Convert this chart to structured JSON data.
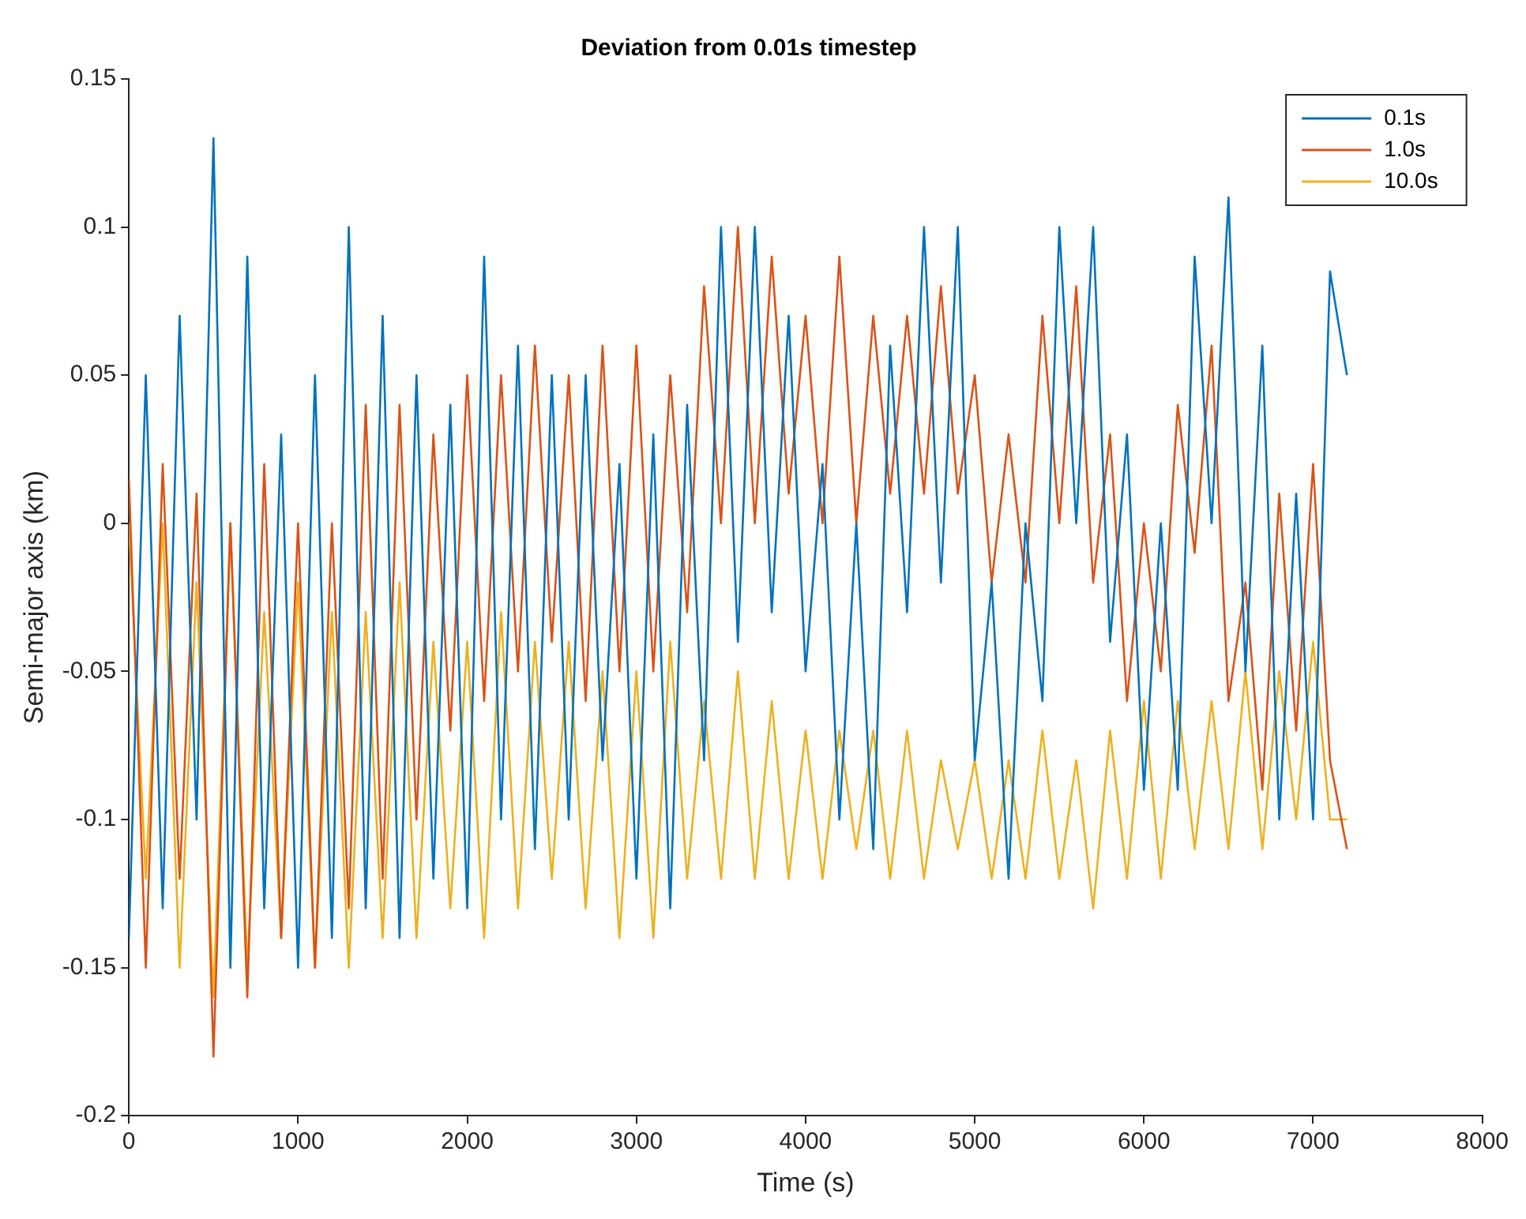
{
  "chart_data": {
    "type": "line",
    "title": "Deviation from 0.01s timestep",
    "xlabel": "Time (s)",
    "ylabel": "Semi-major axis (km)",
    "x": [
      0,
      100,
      200,
      300,
      400,
      500,
      600,
      700,
      800,
      900,
      1000,
      1100,
      1200,
      1300,
      1400,
      1500,
      1600,
      1700,
      1800,
      1900,
      2000,
      2100,
      2200,
      2300,
      2400,
      2500,
      2600,
      2700,
      2800,
      2900,
      3000,
      3100,
      3200,
      3300,
      3400,
      3500,
      3600,
      3700,
      3800,
      3900,
      4000,
      4100,
      4200,
      4300,
      4400,
      4500,
      4600,
      4700,
      4800,
      4900,
      5000,
      5100,
      5200,
      5300,
      5400,
      5500,
      5600,
      5700,
      5800,
      5900,
      6000,
      6100,
      6200,
      6300,
      6400,
      6500,
      6600,
      6700,
      6800,
      6900,
      7000,
      7100,
      7200
    ],
    "series": [
      {
        "name": "0.1s",
        "color": "#0072bd",
        "values": [
          -0.14,
          0.05,
          -0.13,
          0.07,
          -0.1,
          0.13,
          -0.15,
          0.09,
          -0.13,
          0.03,
          -0.15,
          0.05,
          -0.14,
          0.1,
          -0.13,
          0.07,
          -0.14,
          0.05,
          -0.12,
          0.04,
          -0.13,
          0.09,
          -0.1,
          0.06,
          -0.11,
          0.05,
          -0.1,
          0.05,
          -0.08,
          0.02,
          -0.12,
          0.03,
          -0.13,
          0.04,
          -0.08,
          0.1,
          -0.04,
          0.1,
          -0.03,
          0.07,
          -0.05,
          0.02,
          -0.1,
          0.0,
          -0.11,
          0.06,
          -0.03,
          0.1,
          -0.02,
          0.1,
          -0.08,
          -0.02,
          -0.12,
          0.0,
          -0.06,
          0.1,
          0.0,
          0.1,
          -0.04,
          0.03,
          -0.09,
          0.0,
          -0.09,
          0.09,
          0.0,
          0.11,
          -0.05,
          0.06,
          -0.1,
          0.01,
          -0.1,
          0.085,
          0.05
        ]
      },
      {
        "name": "1.0s",
        "color": "#d95319",
        "values": [
          0.015,
          -0.15,
          0.02,
          -0.12,
          0.01,
          -0.18,
          0.0,
          -0.16,
          0.02,
          -0.14,
          0.0,
          -0.15,
          0.0,
          -0.13,
          0.04,
          -0.12,
          0.04,
          -0.1,
          0.03,
          -0.07,
          0.05,
          -0.06,
          0.05,
          -0.05,
          0.06,
          -0.04,
          0.05,
          -0.06,
          0.06,
          -0.05,
          0.06,
          -0.05,
          0.05,
          -0.03,
          0.08,
          0.0,
          0.1,
          0.0,
          0.09,
          0.01,
          0.07,
          0.0,
          0.09,
          0.0,
          0.07,
          0.01,
          0.07,
          0.01,
          0.08,
          0.01,
          0.05,
          -0.02,
          0.03,
          -0.02,
          0.07,
          0.0,
          0.08,
          -0.02,
          0.03,
          -0.06,
          0.0,
          -0.05,
          0.04,
          -0.01,
          0.06,
          -0.06,
          -0.02,
          -0.09,
          0.01,
          -0.07,
          0.02,
          -0.08,
          -0.11
        ]
      },
      {
        "name": "10.0s",
        "color": "#edb120",
        "values": [
          0.0,
          -0.12,
          0.0,
          -0.15,
          -0.02,
          -0.16,
          0.0,
          -0.15,
          -0.03,
          -0.14,
          -0.02,
          -0.15,
          -0.03,
          -0.15,
          -0.03,
          -0.14,
          -0.02,
          -0.14,
          -0.04,
          -0.13,
          -0.04,
          -0.14,
          -0.03,
          -0.13,
          -0.04,
          -0.12,
          -0.04,
          -0.13,
          -0.05,
          -0.14,
          -0.05,
          -0.14,
          -0.04,
          -0.12,
          -0.06,
          -0.12,
          -0.05,
          -0.12,
          -0.06,
          -0.12,
          -0.07,
          -0.12,
          -0.07,
          -0.11,
          -0.07,
          -0.12,
          -0.07,
          -0.12,
          -0.08,
          -0.11,
          -0.08,
          -0.12,
          -0.08,
          -0.12,
          -0.07,
          -0.12,
          -0.08,
          -0.13,
          -0.07,
          -0.12,
          -0.06,
          -0.12,
          -0.06,
          -0.11,
          -0.06,
          -0.11,
          -0.05,
          -0.11,
          -0.05,
          -0.1,
          -0.04,
          -0.1,
          -0.1
        ]
      }
    ],
    "xlim": [
      0,
      8000
    ],
    "xticks": [
      0,
      1000,
      2000,
      3000,
      4000,
      5000,
      6000,
      7000,
      8000
    ],
    "ylim": [
      -0.2,
      0.15
    ],
    "yticks": [
      -0.2,
      -0.15,
      -0.1,
      -0.05,
      0,
      0.05,
      0.1,
      0.15
    ],
    "legend": "top right"
  }
}
